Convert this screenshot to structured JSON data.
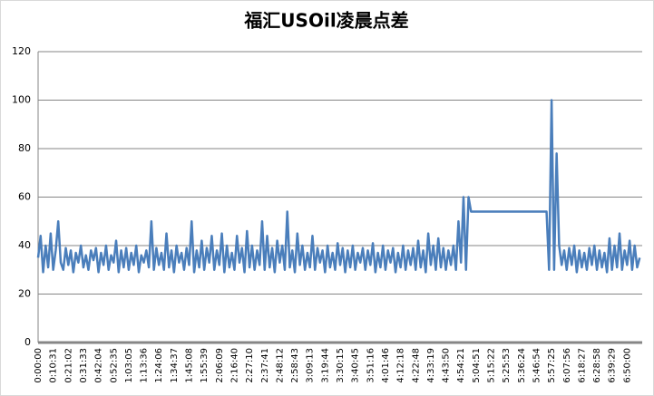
{
  "chart_data": {
    "type": "line",
    "title": "福汇USOil凌晨点差",
    "categories": [
      "0:00:00",
      null,
      null,
      null,
      null,
      null,
      "0:10:31",
      null,
      null,
      null,
      null,
      null,
      "0:21:02",
      null,
      null,
      null,
      null,
      null,
      "0:31:33",
      null,
      null,
      null,
      null,
      null,
      "0:42:04",
      null,
      null,
      null,
      null,
      null,
      "0:52:35",
      null,
      null,
      null,
      null,
      null,
      "1:03:05",
      null,
      null,
      null,
      null,
      null,
      "1:13:36",
      null,
      null,
      null,
      null,
      null,
      "1:24:06",
      null,
      null,
      null,
      null,
      null,
      "1:34:37",
      null,
      null,
      null,
      null,
      null,
      "1:45:08",
      null,
      null,
      null,
      null,
      null,
      "1:55:39",
      null,
      null,
      null,
      null,
      null,
      "2:06:09",
      null,
      null,
      null,
      null,
      null,
      "2:16:40",
      null,
      null,
      null,
      null,
      null,
      "2:27:10",
      null,
      null,
      null,
      null,
      null,
      "2:37:41",
      null,
      null,
      null,
      null,
      null,
      "2:48:12",
      null,
      null,
      null,
      null,
      null,
      "2:58:43",
      null,
      null,
      null,
      null,
      null,
      "3:09:13",
      null,
      null,
      null,
      null,
      null,
      "3:19:44",
      null,
      null,
      null,
      null,
      null,
      "3:30:15",
      null,
      null,
      null,
      null,
      null,
      "3:40:45",
      null,
      null,
      null,
      null,
      null,
      "3:51:16",
      null,
      null,
      null,
      null,
      null,
      "4:01:46",
      null,
      null,
      null,
      null,
      null,
      "4:12:18",
      null,
      null,
      null,
      null,
      null,
      "4:22:48",
      null,
      null,
      null,
      null,
      null,
      "4:33:19",
      null,
      null,
      null,
      null,
      null,
      "4:43:50",
      null,
      null,
      null,
      null,
      null,
      "4:54:21",
      null,
      null,
      null,
      null,
      null,
      "5:04:51",
      null,
      null,
      null,
      null,
      null,
      "5:15:22",
      null,
      null,
      null,
      null,
      null,
      "5:25:53",
      null,
      null,
      null,
      null,
      null,
      "5:36:24",
      null,
      null,
      null,
      null,
      null,
      "5:46:54",
      null,
      null,
      null,
      null,
      null,
      "5:57:25",
      null,
      null,
      null,
      null,
      null,
      "6:07:56",
      null,
      null,
      null,
      null,
      null,
      "6:18:27",
      null,
      null,
      null,
      null,
      null,
      "6:28:58",
      null,
      null,
      null,
      null,
      null,
      "6:39:29",
      null,
      null,
      null,
      null,
      null,
      "6:50:00",
      null,
      null,
      null,
      null,
      null
    ],
    "values": [
      35,
      44,
      29,
      40,
      31,
      45,
      30,
      38,
      50,
      33,
      30,
      39,
      32,
      38,
      29,
      37,
      33,
      40,
      31,
      36,
      30,
      38,
      34,
      39,
      29,
      37,
      32,
      40,
      30,
      36,
      33,
      42,
      29,
      38,
      31,
      39,
      30,
      37,
      32,
      40,
      29,
      36,
      33,
      38,
      31,
      50,
      30,
      39,
      32,
      37,
      30,
      45,
      31,
      38,
      29,
      40,
      33,
      37,
      30,
      39,
      32,
      50,
      29,
      38,
      31,
      42,
      30,
      39,
      33,
      44,
      30,
      38,
      32,
      45,
      29,
      40,
      31,
      37,
      30,
      44,
      33,
      39,
      29,
      46,
      31,
      40,
      30,
      38,
      32,
      50,
      30,
      44,
      31,
      39,
      29,
      42,
      33,
      40,
      30,
      54,
      31,
      38,
      29,
      45,
      32,
      40,
      30,
      37,
      31,
      44,
      30,
      39,
      33,
      38,
      29,
      40,
      31,
      37,
      30,
      41,
      32,
      39,
      29,
      38,
      31,
      40,
      30,
      37,
      33,
      39,
      30,
      38,
      32,
      41,
      29,
      37,
      31,
      40,
      30,
      38,
      33,
      39,
      29,
      37,
      31,
      40,
      30,
      38,
      32,
      39,
      30,
      42,
      31,
      38,
      29,
      45,
      32,
      40,
      30,
      43,
      31,
      39,
      30,
      38,
      32,
      40,
      30,
      50,
      33,
      60,
      30,
      60,
      54,
      54,
      54,
      54,
      54,
      54,
      54,
      54,
      54,
      54,
      54,
      54,
      54,
      54,
      54,
      54,
      54,
      54,
      54,
      54,
      54,
      54,
      54,
      54,
      54,
      54,
      54,
      54,
      54,
      54,
      54,
      30,
      100,
      30,
      78,
      40,
      32,
      38,
      30,
      39,
      32,
      40,
      29,
      38,
      31,
      37,
      30,
      39,
      32,
      40,
      30,
      38,
      31,
      37,
      29,
      43,
      30,
      40,
      31,
      45,
      30,
      38,
      32,
      42,
      30,
      40,
      31,
      35
    ],
    "color": "#4a7ebb",
    "ylim": [
      0,
      120
    ],
    "yticks": [
      0,
      20,
      40,
      60,
      80,
      100,
      120
    ],
    "grid": true
  }
}
